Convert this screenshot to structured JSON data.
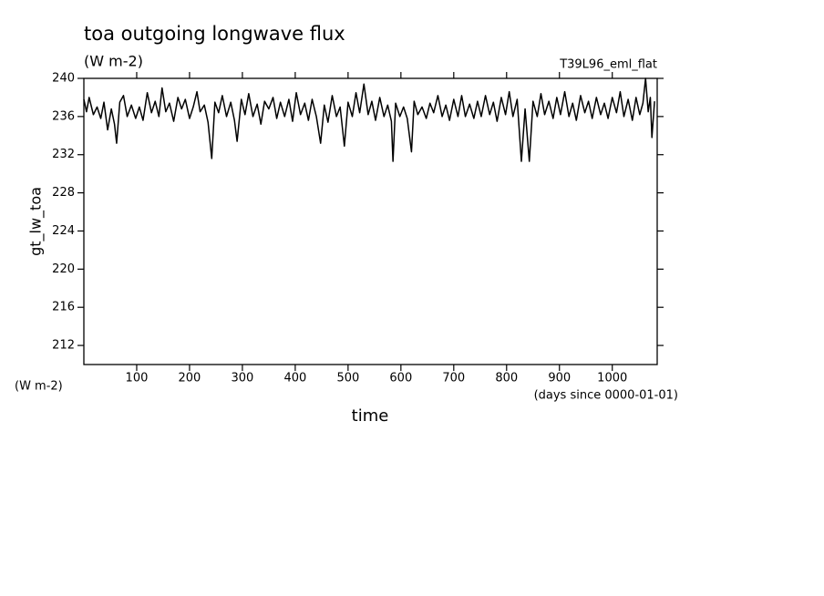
{
  "chart_data": {
    "type": "line",
    "title": "toa outgoing longwave flux",
    "subtitle": "(W m-2)",
    "annotation": "T39L96_eml_flat",
    "ylabel": "gt_lw_toa",
    "yunits": "(W m-2)",
    "xlabel": "time",
    "xunits": "(days since 0000-01-01)",
    "xlim": [
      0,
      1085
    ],
    "ylim": [
      210,
      240
    ],
    "xticks": [
      100,
      200,
      300,
      400,
      500,
      600,
      700,
      800,
      900,
      1000
    ],
    "yticks": [
      212,
      216,
      220,
      224,
      228,
      232,
      236,
      240
    ],
    "x": [
      0,
      5,
      10,
      18,
      25,
      32,
      38,
      45,
      52,
      58,
      62,
      68,
      75,
      82,
      90,
      98,
      105,
      112,
      120,
      128,
      135,
      142,
      148,
      155,
      162,
      170,
      178,
      185,
      192,
      200,
      207,
      214,
      220,
      228,
      235,
      242,
      248,
      255,
      262,
      270,
      278,
      285,
      290,
      298,
      305,
      312,
      320,
      328,
      335,
      342,
      350,
      358,
      365,
      372,
      380,
      388,
      395,
      402,
      410,
      418,
      425,
      432,
      440,
      448,
      455,
      462,
      470,
      478,
      485,
      493,
      500,
      508,
      515,
      522,
      530,
      538,
      545,
      552,
      560,
      568,
      575,
      582,
      585,
      590,
      598,
      605,
      612,
      620,
      625,
      632,
      640,
      648,
      655,
      662,
      670,
      678,
      685,
      692,
      700,
      708,
      715,
      722,
      730,
      738,
      745,
      752,
      760,
      768,
      775,
      782,
      790,
      798,
      805,
      812,
      820,
      828,
      835,
      843,
      850,
      858,
      865,
      872,
      880,
      888,
      895,
      902,
      910,
      918,
      925,
      932,
      940,
      948,
      955,
      962,
      970,
      978,
      985,
      992,
      1000,
      1008,
      1015,
      1022,
      1030,
      1038,
      1045,
      1052,
      1058,
      1063,
      1068,
      1072,
      1075,
      1080
    ],
    "series": [
      {
        "name": "gt_lw_toa",
        "color": "#000000",
        "values": [
          237.8,
          236.5,
          238.0,
          236.2,
          237.0,
          235.8,
          237.5,
          234.6,
          236.8,
          235.2,
          233.2,
          237.5,
          238.2,
          236.0,
          237.2,
          235.8,
          237.0,
          235.6,
          238.5,
          236.4,
          237.6,
          236.0,
          239.0,
          236.5,
          237.4,
          235.5,
          238.0,
          236.8,
          237.8,
          235.8,
          237.0,
          238.6,
          236.5,
          237.2,
          235.4,
          231.6,
          237.5,
          236.4,
          238.2,
          236.0,
          237.5,
          235.6,
          233.4,
          237.8,
          236.2,
          238.4,
          236.0,
          237.3,
          235.2,
          237.6,
          236.8,
          238.0,
          235.8,
          237.5,
          236.0,
          237.8,
          235.5,
          238.5,
          236.2,
          237.4,
          235.6,
          237.8,
          236.0,
          233.2,
          237.2,
          235.4,
          238.2,
          236.0,
          237.0,
          232.9,
          237.5,
          236.0,
          238.5,
          236.4,
          239.4,
          236.2,
          237.6,
          235.6,
          238.0,
          236.0,
          237.2,
          235.5,
          231.3,
          237.4,
          236.0,
          237.0,
          235.8,
          232.3,
          237.6,
          236.2,
          237.0,
          235.8,
          237.4,
          236.4,
          238.2,
          236.0,
          237.2,
          235.6,
          237.8,
          236.0,
          238.2,
          236.0,
          237.3,
          235.8,
          237.6,
          236.0,
          238.2,
          236.2,
          237.5,
          235.5,
          238.0,
          236.2,
          238.6,
          236.0,
          237.8,
          231.3,
          236.8,
          231.3,
          237.6,
          236.0,
          238.4,
          236.2,
          237.6,
          235.8,
          238.0,
          236.2,
          238.6,
          236.0,
          237.4,
          235.6,
          238.2,
          236.4,
          237.6,
          235.8,
          238.0,
          236.2,
          237.4,
          235.8,
          238.0,
          236.4,
          238.6,
          236.0,
          237.8,
          235.6,
          238.0,
          236.2,
          237.4,
          240.0,
          236.5,
          238.0,
          233.8,
          237.6
        ]
      }
    ]
  }
}
